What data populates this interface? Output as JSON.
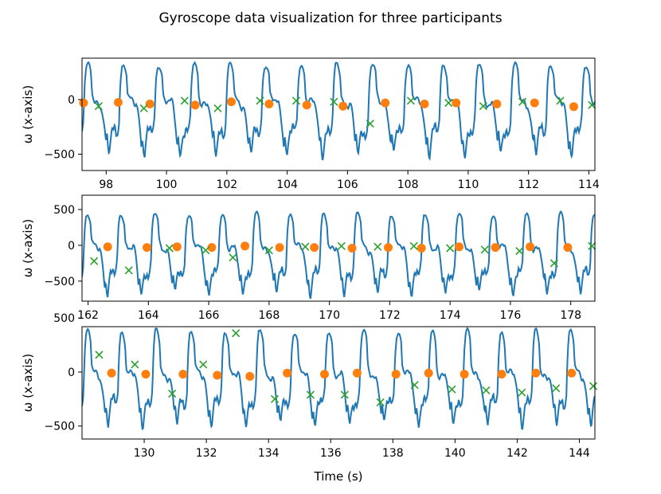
{
  "title": "Gyroscope data visualization for three participants",
  "xlabel": "Time (s)",
  "colors": {
    "signal": "#1f77b4",
    "circle_marker": "#ff7f0e",
    "x_marker": "#2ca02c",
    "axes": "#000000"
  },
  "chart_data": [
    {
      "type": "line",
      "participant": 1,
      "ylabel": "ω (x-axis)",
      "xlim": [
        97.2,
        114.2
      ],
      "ylim": [
        -650,
        380
      ],
      "xticks": [
        98,
        100,
        102,
        104,
        106,
        108,
        110,
        112,
        114
      ],
      "yticks": [
        -500,
        0
      ],
      "signal": {
        "start": 97.2,
        "period": 1.18,
        "peak": 330,
        "trough": -520
      },
      "circles": {
        "x": [
          97.25,
          98.4,
          99.45,
          100.95,
          102.15,
          103.4,
          104.65,
          105.85,
          107.25,
          108.55,
          109.6,
          110.95,
          112.2,
          113.5
        ],
        "y": [
          -30,
          -25,
          -40,
          -50,
          -20,
          -40,
          -50,
          -60,
          -30,
          -40,
          -30,
          -40,
          -30,
          -65
        ]
      },
      "crosses": {
        "x": [
          97.75,
          99.25,
          100.6,
          101.7,
          103.1,
          104.3,
          105.55,
          106.75,
          108.1,
          109.35,
          110.5,
          111.8,
          113.05,
          114.1
        ],
        "y": [
          -60,
          -80,
          -10,
          -80,
          -10,
          -10,
          -20,
          -220,
          -10,
          -30,
          -60,
          -20,
          -10,
          -50
        ]
      }
    },
    {
      "type": "line",
      "participant": 2,
      "ylabel": "ω (x-axis)",
      "xlim": [
        161.8,
        178.8
      ],
      "ylim": [
        -780,
        700
      ],
      "xticks": [
        162,
        164,
        166,
        168,
        170,
        172,
        174,
        176,
        178
      ],
      "yticks": [
        -500,
        0,
        500
      ],
      "signal": {
        "start": 161.8,
        "period": 1.12,
        "peak": 450,
        "trough": -700
      },
      "circles": {
        "x": [
          162.65,
          163.95,
          164.95,
          166.1,
          167.2,
          168.35,
          169.5,
          170.75,
          171.95,
          173.05,
          174.3,
          175.5,
          176.65,
          177.9
        ],
        "y": [
          -20,
          -30,
          -20,
          -30,
          -10,
          -30,
          -30,
          -40,
          -30,
          -40,
          -20,
          -30,
          -20,
          -30
        ]
      },
      "crosses": {
        "x": [
          162.2,
          163.35,
          164.7,
          165.9,
          166.8,
          168.0,
          169.2,
          170.4,
          171.6,
          172.8,
          174.0,
          175.15,
          176.3,
          177.45,
          178.7
        ],
        "y": [
          -220,
          -350,
          -40,
          -70,
          -170,
          -70,
          -20,
          -10,
          -20,
          -10,
          -40,
          -60,
          -80,
          -250,
          -10
        ]
      }
    },
    {
      "type": "line",
      "participant": 3,
      "ylabel": "ω (x-axis)",
      "xlabel": "Time (s)",
      "xlim": [
        128.0,
        144.5
      ],
      "ylim": [
        -620,
        420
      ],
      "xticks": [
        130,
        132,
        134,
        136,
        138,
        140,
        142,
        144
      ],
      "yticks": [
        -500,
        0,
        500
      ],
      "signal": {
        "start": 128.0,
        "period": 1.11,
        "peak": 390,
        "trough": -500
      },
      "circles": {
        "x": [
          128.95,
          130.05,
          131.25,
          132.35,
          133.4,
          134.6,
          135.8,
          136.85,
          138.1,
          139.15,
          140.3,
          141.5,
          142.6,
          143.75
        ],
        "y": [
          -10,
          -20,
          -20,
          -30,
          -40,
          -10,
          -20,
          -10,
          -20,
          -10,
          -20,
          -20,
          -10,
          -10
        ]
      },
      "crosses": {
        "x": [
          128.55,
          129.7,
          130.9,
          131.9,
          132.95,
          134.2,
          135.35,
          136.45,
          137.6,
          138.7,
          139.9,
          141.0,
          142.15,
          143.25,
          144.45
        ],
        "y": [
          160,
          70,
          -200,
          70,
          360,
          -250,
          -210,
          -210,
          -280,
          -120,
          -160,
          -170,
          -190,
          -150,
          -130
        ]
      }
    }
  ]
}
